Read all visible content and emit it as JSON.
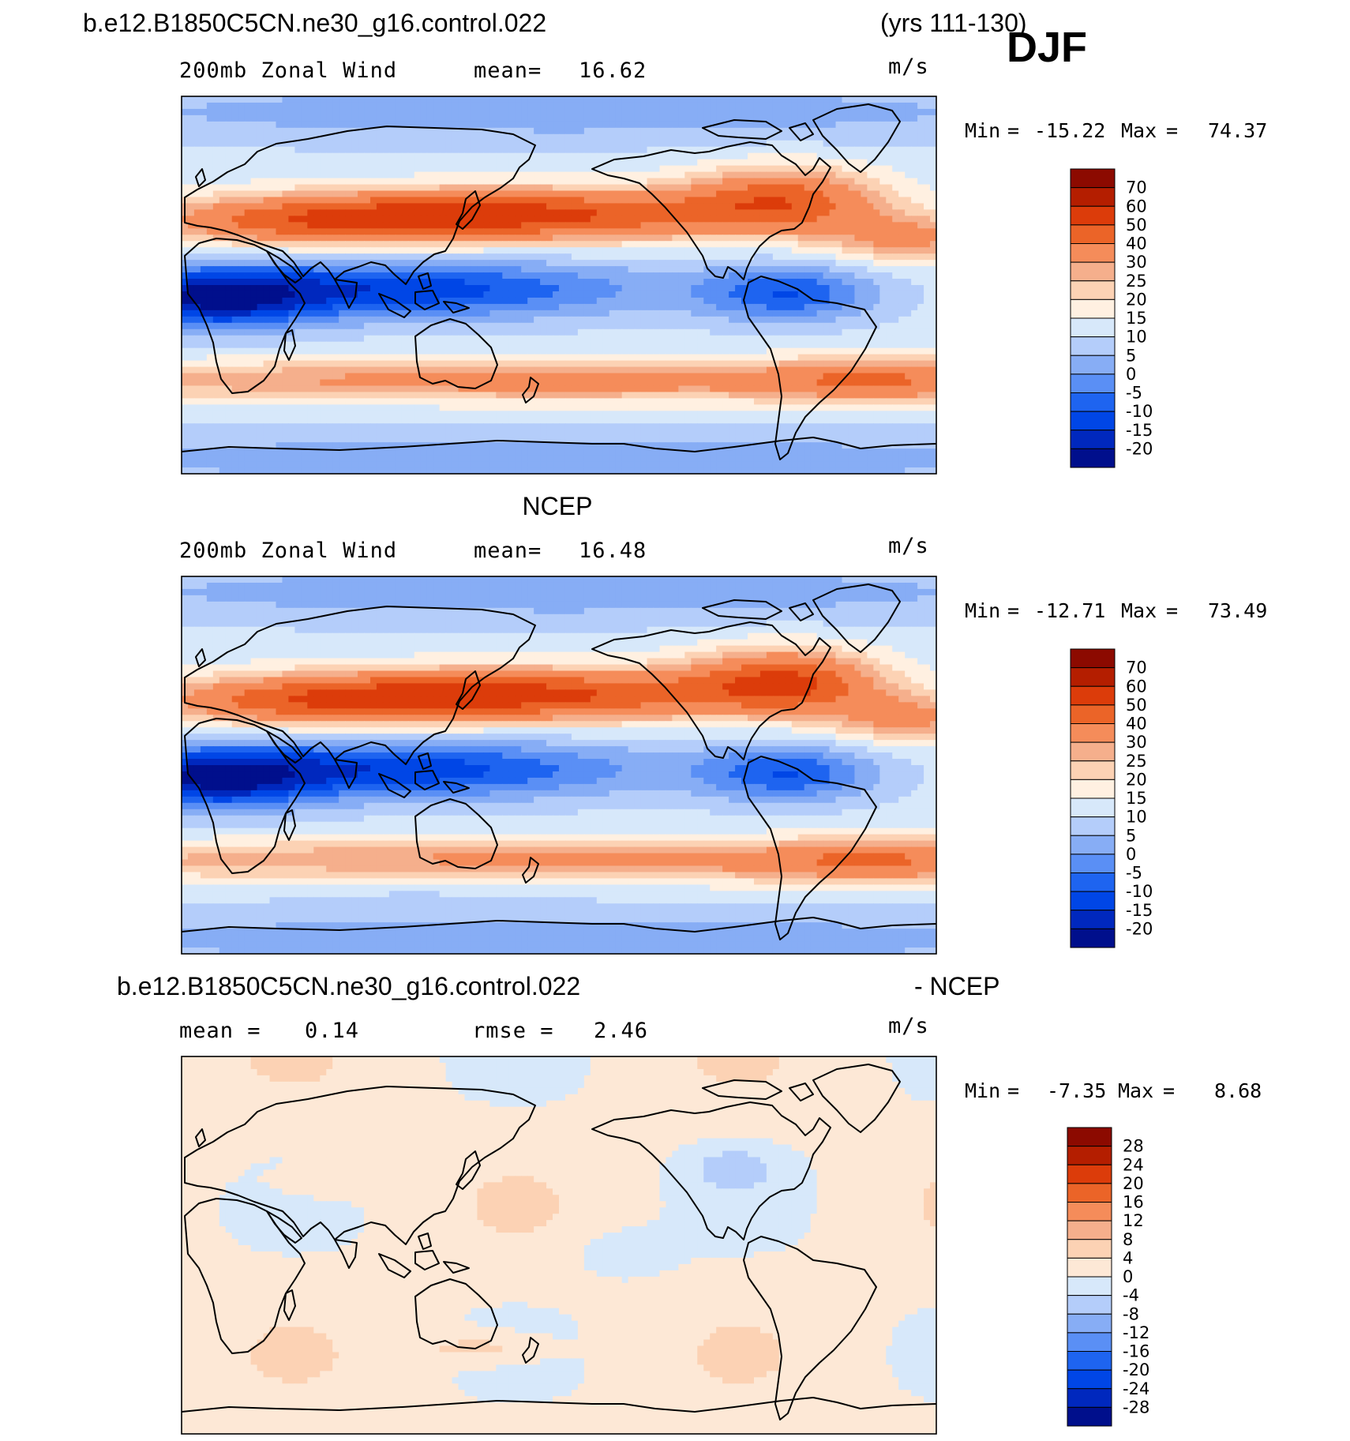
{
  "header": {
    "case_name": "b.e12.B1850C5CN.ne30_g16.control.022",
    "years": "(yrs 111-130)",
    "season": "DJF"
  },
  "palette": {
    "full": [
      "#000f8c",
      "#0028be",
      "#0046e6",
      "#1e64f0",
      "#5a8ff5",
      "#87adf5",
      "#b4cdfa",
      "#d7e8fa",
      "#fff0e1",
      "#fcd2b4",
      "#f5af8c",
      "#f58c5a",
      "#eb6428",
      "#dc3c0a",
      "#b41e00",
      "#8c0a00"
    ],
    "diff": [
      "#000f8c",
      "#0028be",
      "#0046e6",
      "#1e64f0",
      "#5a8ff5",
      "#87adf5",
      "#b4cdfa",
      "#d7e8fa",
      "#fde8d6",
      "#fcd2b4",
      "#f5af8c",
      "#f58c5a",
      "#eb6428",
      "#dc3c0a",
      "#b41e00",
      "#8c0a00"
    ]
  },
  "panels": [
    {
      "id": "model",
      "title": "",
      "left_label": "200mb Zonal Wind",
      "mean_label": "mean=",
      "mean_value": "16.62",
      "units": "m/s",
      "min_label": "Min",
      "min_value": "-15.22",
      "max_label": "Max",
      "max_value": "74.37",
      "colorbar_labels": [
        "70",
        "60",
        "50",
        "40",
        "30",
        "25",
        "20",
        "15",
        "10",
        "5",
        "0",
        "-5",
        "-10",
        "-15",
        "-20"
      ],
      "field": "model"
    },
    {
      "id": "obs",
      "title": "NCEP",
      "left_label": "200mb Zonal Wind",
      "mean_label": "mean=",
      "mean_value": "16.48",
      "units": "m/s",
      "min_label": "Min",
      "min_value": "-12.71",
      "max_label": "Max",
      "max_value": "73.49",
      "colorbar_labels": [
        "70",
        "60",
        "50",
        "40",
        "30",
        "25",
        "20",
        "15",
        "10",
        "5",
        "0",
        "-5",
        "-10",
        "-15",
        "-20"
      ],
      "field": "obs"
    },
    {
      "id": "diff",
      "title": "b.e12.B1850C5CN.ne30_g16.control.022",
      "title_suffix": "- NCEP",
      "left_label": "mean =",
      "left_value": "0.14",
      "mean_label": "rmse =",
      "mean_value": "2.46",
      "units": "m/s",
      "min_label": "Min",
      "min_value": "-7.35",
      "max_label": "Max",
      "max_value": "8.68",
      "colorbar_labels": [
        "28",
        "24",
        "20",
        "16",
        "12",
        "8",
        "4",
        "0",
        "-4",
        "-8",
        "-12",
        "-16",
        "-20",
        "-24",
        "-28"
      ],
      "field": "diff"
    }
  ]
}
